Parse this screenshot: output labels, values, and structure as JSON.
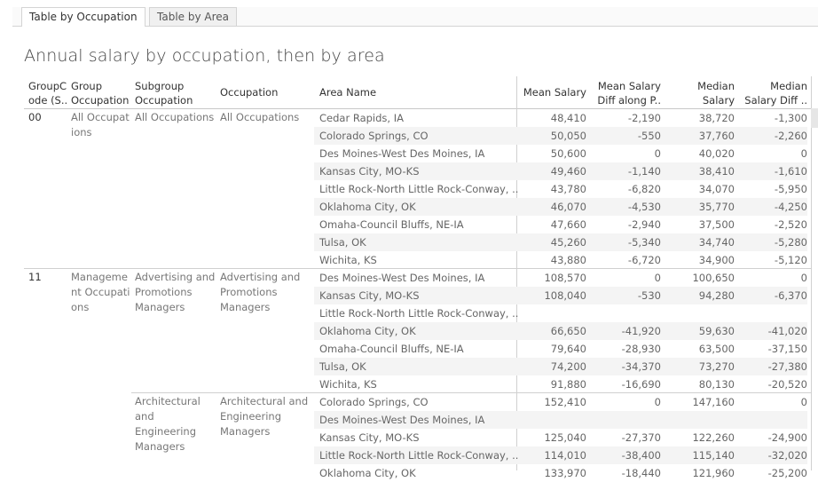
{
  "tabs": [
    {
      "label": "Table by Occupation",
      "active": true
    },
    {
      "label": "Table by Area",
      "active": false
    }
  ],
  "title": "Annual salary by occupation, then by area",
  "columns": {
    "group_code": "GroupC\node (S..",
    "group_occupation": "Group\nOccupation",
    "subgroup_occupation": "Subgroup\nOccupation",
    "occupation": "Occupation",
    "area_name": "Area Name",
    "mean_salary": "Mean Salary",
    "mean_diff": "Mean Salary\nDiff along P..",
    "median_salary": "Median\nSalary",
    "median_diff": "Median\nSalary Diff .."
  },
  "groups": [
    {
      "code": "00",
      "group_occupation": "All Occupat\nions",
      "subgroups": [
        {
          "subgroup": "All Occupations",
          "occupation": "All Occupations",
          "rows": [
            {
              "area": "Cedar Rapids, IA",
              "mean": "48,410",
              "mean_diff": "-2,190",
              "median": "38,720",
              "median_diff": "-1,300"
            },
            {
              "area": "Colorado Springs, CO",
              "mean": "50,050",
              "mean_diff": "-550",
              "median": "37,760",
              "median_diff": "-2,260"
            },
            {
              "area": "Des Moines-West Des Moines, IA",
              "mean": "50,600",
              "mean_diff": "0",
              "median": "40,020",
              "median_diff": "0"
            },
            {
              "area": "Kansas City, MO-KS",
              "mean": "49,460",
              "mean_diff": "-1,140",
              "median": "38,410",
              "median_diff": "-1,610"
            },
            {
              "area": "Little Rock-North Little Rock-Conway, ..",
              "mean": "43,780",
              "mean_diff": "-6,820",
              "median": "34,070",
              "median_diff": "-5,950"
            },
            {
              "area": "Oklahoma City, OK",
              "mean": "46,070",
              "mean_diff": "-4,530",
              "median": "35,770",
              "median_diff": "-4,250"
            },
            {
              "area": "Omaha-Council Bluffs, NE-IA",
              "mean": "47,660",
              "mean_diff": "-2,940",
              "median": "37,500",
              "median_diff": "-2,520"
            },
            {
              "area": "Tulsa, OK",
              "mean": "45,260",
              "mean_diff": "-5,340",
              "median": "34,740",
              "median_diff": "-5,280"
            },
            {
              "area": "Wichita, KS",
              "mean": "43,880",
              "mean_diff": "-6,720",
              "median": "34,900",
              "median_diff": "-5,120"
            }
          ]
        }
      ]
    },
    {
      "code": "11",
      "group_occupation": "Manageme\nnt Occupati\nons",
      "subgroups": [
        {
          "subgroup": "Advertising and\nPromotions\nManagers",
          "occupation": "Advertising and\nPromotions\nManagers",
          "rows": [
            {
              "area": "Des Moines-West Des Moines, IA",
              "mean": "108,570",
              "mean_diff": "0",
              "median": "100,650",
              "median_diff": "0"
            },
            {
              "area": "Kansas City, MO-KS",
              "mean": "108,040",
              "mean_diff": "-530",
              "median": "94,280",
              "median_diff": "-6,370"
            },
            {
              "area": "Little Rock-North Little Rock-Conway, ..",
              "mean": "",
              "mean_diff": "",
              "median": "",
              "median_diff": ""
            },
            {
              "area": "Oklahoma City, OK",
              "mean": "66,650",
              "mean_diff": "-41,920",
              "median": "59,630",
              "median_diff": "-41,020"
            },
            {
              "area": "Omaha-Council Bluffs, NE-IA",
              "mean": "79,640",
              "mean_diff": "-28,930",
              "median": "63,500",
              "median_diff": "-37,150"
            },
            {
              "area": "Tulsa, OK",
              "mean": "74,200",
              "mean_diff": "-34,370",
              "median": "73,270",
              "median_diff": "-27,380"
            },
            {
              "area": "Wichita, KS",
              "mean": "91,880",
              "mean_diff": "-16,690",
              "median": "80,130",
              "median_diff": "-20,520"
            }
          ]
        },
        {
          "subgroup": "Architectural\nand\nEngineering\nManagers",
          "occupation": "Architectural and\nEngineering\nManagers",
          "rows": [
            {
              "area": "Colorado Springs, CO",
              "mean": "152,410",
              "mean_diff": "0",
              "median": "147,160",
              "median_diff": "0"
            },
            {
              "area": "Des Moines-West Des Moines, IA",
              "mean": "",
              "mean_diff": "",
              "median": "",
              "median_diff": ""
            },
            {
              "area": "Kansas City, MO-KS",
              "mean": "125,040",
              "mean_diff": "-27,370",
              "median": "122,260",
              "median_diff": "-24,900"
            },
            {
              "area": "Little Rock-North Little Rock-Conway, ..",
              "mean": "114,010",
              "mean_diff": "-38,400",
              "median": "115,140",
              "median_diff": "-32,020"
            },
            {
              "area": "Oklahoma City, OK",
              "mean": "133,970",
              "mean_diff": "-18,440",
              "median": "121,960",
              "median_diff": "-25,200"
            }
          ]
        }
      ]
    }
  ]
}
